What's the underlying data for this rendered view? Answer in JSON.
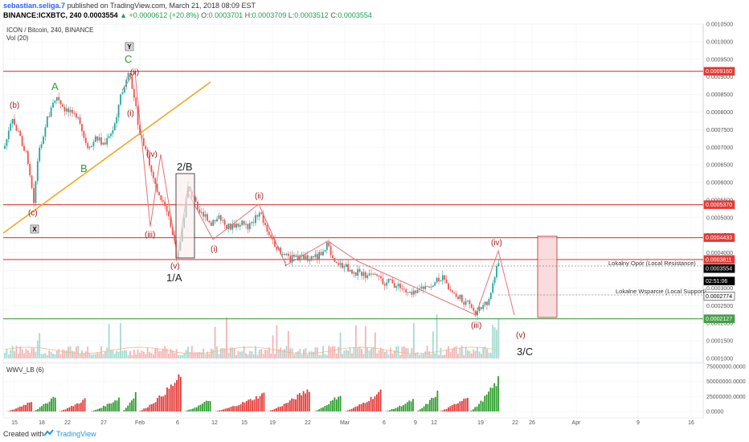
{
  "header": {
    "author": "sebastian.seliga.7",
    "published_text": "published on TradingView.com, March 21, 2018 08:09 EST",
    "symbol_line": "BINANCE:ICXBTC, 240",
    "last": "0.0003554",
    "change": "▲ +0.0000612 (+20.8%)",
    "o_label": "O:",
    "o": "0.0003701",
    "h_label": "H:",
    "h": "0.0003709",
    "l_label": "L:",
    "l": "0.0003512",
    "c_label": "C:",
    "c": "0.0003554"
  },
  "legend": {
    "title": "ICON / Bitcoin, 240, BINANCE",
    "vol": "Vol (20)",
    "indicator": "WWV_LB (6)"
  },
  "footer": {
    "created_with": "Created with",
    "brand": "TradingView"
  },
  "colors": {
    "up": "#26a69a",
    "down": "#ef5350",
    "red_line": "#e53935",
    "green_line": "#43a047",
    "orange_line": "#f5a623",
    "wave_red": "#a61c1c",
    "wave_green": "#2e9e2e"
  },
  "chart_data": {
    "type": "candlestick",
    "price_axis_ticks": [
      "0.0010500",
      "0.0010000",
      "0.0009500",
      "0.0009000",
      "0.0008500",
      "0.0008000",
      "0.0007500",
      "0.0007000",
      "0.0006500",
      "0.0006000",
      "0.0005500",
      "0.0005000",
      "0.0004500",
      "0.0004000",
      "0.0003500",
      "0.0003000",
      "0.0002500",
      "0.0002000",
      "0.0001500",
      "0.0001000"
    ],
    "price_ylim": [
      9e-05,
      0.00106
    ],
    "time_axis_ticks": [
      "15",
      "18",
      "22",
      "27",
      "Feb",
      "6",
      "12",
      "15",
      "19",
      "22",
      "Mar",
      "6",
      "9",
      "12",
      "19",
      "22",
      "26",
      "Apr",
      "9",
      "16"
    ],
    "horizontal_levels": [
      {
        "value": 0.000916,
        "label": "0.0009160",
        "color": "#e53935"
      },
      {
        "value": 0.000537,
        "label": "0.0005370",
        "color": "#e53935"
      },
      {
        "value": 0.0004433,
        "label": "0.0004433",
        "color": "#e53935"
      },
      {
        "value": 0.0003811,
        "label": "0.0003811",
        "color": "#e53935"
      },
      {
        "value": 0.0003552,
        "label": "0.0003552",
        "color": "#ffffff",
        "text": "#000000"
      },
      {
        "value": 0.0003554,
        "label": "0.0003554",
        "color": "#000000",
        "text": "#ffffff"
      },
      {
        "value": 0.00032,
        "label": "02:51:06",
        "color": "#000000",
        "text": "#ffffff"
      },
      {
        "value": 0.0002774,
        "label": "0.0002774",
        "color": "#ffffff",
        "text": "#000000"
      },
      {
        "value": 0.0002127,
        "label": "0.0002127",
        "color": "#43a047"
      }
    ],
    "annotations": {
      "resistance": "Lokalny Opór (Local Resistance)",
      "support": "Lokalne Wsparcie (Local Support)"
    },
    "wave_labels": [
      {
        "text": "(b)",
        "color": "red"
      },
      {
        "text": "A",
        "color": "green"
      },
      {
        "text": "B",
        "color": "green"
      },
      {
        "text": "C",
        "color": "green"
      },
      {
        "text": "(c)",
        "color": "red"
      },
      {
        "text": "(ii)",
        "color": "red"
      },
      {
        "text": "(i)",
        "color": "red"
      },
      {
        "text": "(iv)",
        "color": "red"
      },
      {
        "text": "(iii)",
        "color": "red"
      },
      {
        "text": "(v)",
        "color": "red"
      },
      {
        "text": "2/B",
        "color": "black"
      },
      {
        "text": "1/A",
        "color": "black"
      },
      {
        "text": "(i)",
        "color": "red"
      },
      {
        "text": "(ii)",
        "color": "red"
      },
      {
        "text": "(iii)",
        "color": "red"
      },
      {
        "text": "(iv)",
        "color": "red"
      },
      {
        "text": "(v)",
        "color": "red"
      },
      {
        "text": "3/C",
        "color": "black"
      }
    ],
    "markers": [
      "Y",
      "X"
    ],
    "indicator_axis_ticks": [
      "75000000.0000",
      "50000000.0000",
      "25000000.0000",
      "0.0000"
    ],
    "indicator_ylim": [
      0,
      75000000
    ]
  }
}
